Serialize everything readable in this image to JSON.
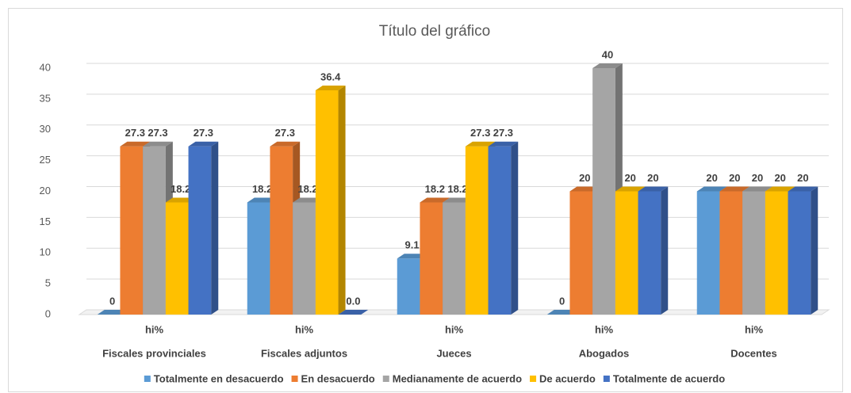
{
  "chart_data": {
    "type": "bar3d",
    "title": "Título del gráfico",
    "categories": [
      "Fiscales provinciales",
      "Fiscales adjuntos",
      "Jueces",
      "Abogados",
      "Docentes"
    ],
    "category_sublabels": [
      "hi%",
      "hi%",
      "hi%",
      "hi%",
      "hi%"
    ],
    "ylim": [
      0,
      40
    ],
    "yticks": [
      0,
      5,
      10,
      15,
      20,
      25,
      30,
      35,
      40
    ],
    "grid": true,
    "legend": "bottom",
    "series": [
      {
        "name": "Totalmente en desacuerdo",
        "color": "#5b9bd5",
        "values": [
          0,
          18.2,
          9.1,
          0,
          20
        ]
      },
      {
        "name": "En desacuerdo",
        "color": "#ed7d31",
        "values": [
          27.3,
          27.3,
          18.2,
          20,
          20
        ]
      },
      {
        "name": "Medianamente de acuerdo",
        "color": "#a5a5a5",
        "values": [
          27.3,
          18.2,
          18.2,
          40,
          20
        ]
      },
      {
        "name": "De acuerdo",
        "color": "#ffc000",
        "values": [
          18.2,
          36.4,
          27.3,
          20,
          20
        ]
      },
      {
        "name": "Totalmente de acuerdo",
        "color": "#4472c4",
        "values": [
          27.3,
          0,
          27.3,
          20,
          20
        ],
        "value_labels": [
          "27.3",
          "0.0",
          "27.3",
          "20",
          "20"
        ]
      }
    ]
  }
}
